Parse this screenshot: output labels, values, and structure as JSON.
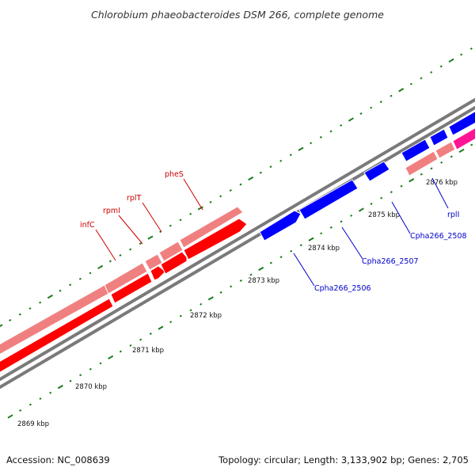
{
  "title": "Chlorobium phaeobacteroides DSM 266, complete genome",
  "footer": {
    "accession": "Accession: NC_008639",
    "summary": "Topology: circular; Length: 3,133,902 bp; Genes: 2,705"
  },
  "colors": {
    "forward_strand_red": "#ff0000",
    "forward_strand_pink": "#f08080",
    "reverse_strand_blue": "#0000ff",
    "magenta_gene": "#ff1493",
    "tick_green": "#1a7a1a",
    "backbone_gray": "#7a7a7a",
    "label_red": "#cc0000",
    "label_blue": "#0000cc"
  },
  "scale_labels": [
    "2869 kbp",
    "2870 kbp",
    "2871 kbp",
    "2872 kbp",
    "2873 kbp",
    "2874 kbp",
    "2875 kbp",
    "2876 kbp"
  ],
  "gene_labels": {
    "infC": "infC",
    "rpmI": "rpmI",
    "rplT": "rplT",
    "pheS": "pheS",
    "cpha2506": "Cpha266_2506",
    "cpha2507": "Cpha266_2507",
    "cpha2508": "Cpha266_2508",
    "rplI": "rplI"
  }
}
